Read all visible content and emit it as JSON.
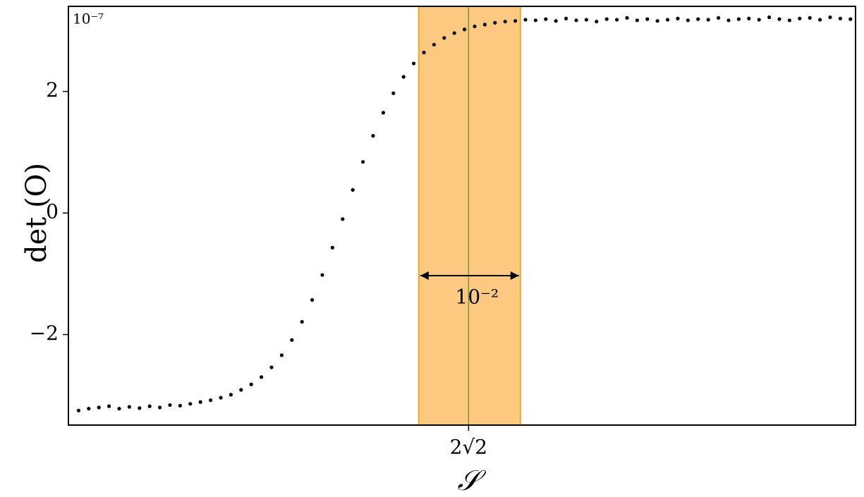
{
  "chart_data": {
    "type": "scatter",
    "y_label": "det (O)",
    "x_label": "𝒮",
    "y_scale_note": "10⁻⁷",
    "span_annotation": "10⁻²",
    "highlight_span": [
      2.8235,
      2.8335
    ],
    "xlim": [
      2.789,
      2.8665
    ],
    "ylim": [
      -3.49,
      3.4
    ],
    "xticks": [
      {
        "value": 2.8284,
        "label": "2√2"
      }
    ],
    "yticks": [
      {
        "value": -2,
        "label": "−2"
      },
      0,
      2
    ],
    "color": "#000000",
    "x": [
      2.79,
      2.791,
      2.792,
      2.793,
      2.794,
      2.795,
      2.796,
      2.797,
      2.798,
      2.799,
      2.8,
      2.801,
      2.802,
      2.803,
      2.804,
      2.805,
      2.806,
      2.807,
      2.808,
      2.809,
      2.81,
      2.811,
      2.812,
      2.813,
      2.814,
      2.815,
      2.816,
      2.817,
      2.818,
      2.819,
      2.82,
      2.821,
      2.822,
      2.823,
      2.824,
      2.825,
      2.826,
      2.827,
      2.828,
      2.829,
      2.83,
      2.831,
      2.832,
      2.833,
      2.834,
      2.835,
      2.836,
      2.837,
      2.838,
      2.839,
      2.84,
      2.841,
      2.842,
      2.843,
      2.844,
      2.845,
      2.846,
      2.847,
      2.848,
      2.849,
      2.85,
      2.851,
      2.852,
      2.853,
      2.854,
      2.855,
      2.856,
      2.857,
      2.858,
      2.859,
      2.86,
      2.861,
      2.862,
      2.863,
      2.864,
      2.865,
      2.866
    ],
    "values": [
      -3.25,
      -3.22,
      -3.2,
      -3.18,
      -3.22,
      -3.19,
      -3.21,
      -3.18,
      -3.2,
      -3.16,
      -3.17,
      -3.14,
      -3.11,
      -3.08,
      -3.04,
      -2.99,
      -2.91,
      -2.82,
      -2.7,
      -2.54,
      -2.34,
      -2.09,
      -1.79,
      -1.43,
      -1.02,
      -0.57,
      -0.1,
      0.38,
      0.84,
      1.27,
      1.65,
      1.97,
      2.24,
      2.46,
      2.64,
      2.77,
      2.88,
      2.96,
      3.02,
      3.07,
      3.1,
      3.13,
      3.15,
      3.16,
      3.18,
      3.17,
      3.19,
      3.16,
      3.2,
      3.17,
      3.18,
      3.15,
      3.19,
      3.18,
      3.21,
      3.17,
      3.19,
      3.16,
      3.18,
      3.2,
      3.17,
      3.19,
      3.18,
      3.21,
      3.17,
      3.19,
      3.2,
      3.18,
      3.22,
      3.19,
      3.17,
      3.2,
      3.21,
      3.18,
      3.22,
      3.2,
      3.19
    ]
  }
}
